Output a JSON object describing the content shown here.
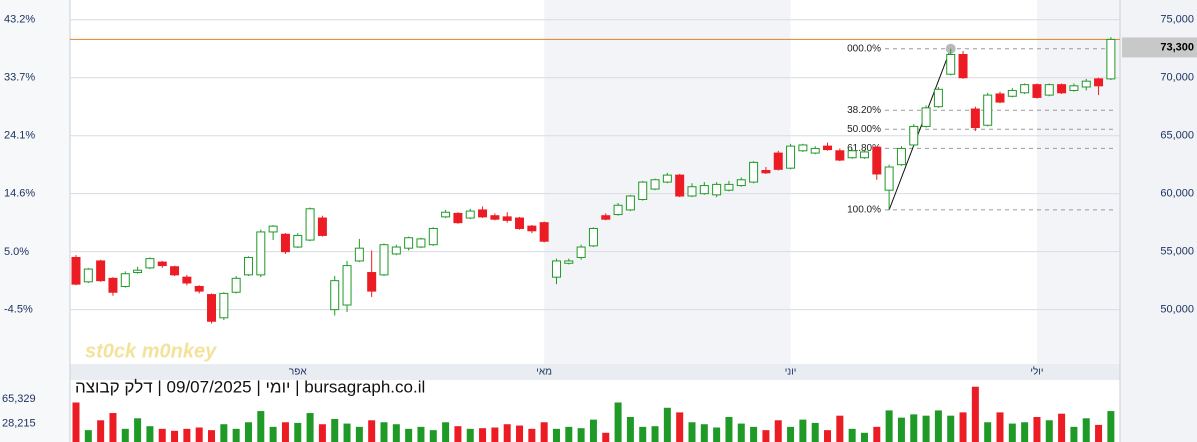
{
  "chart_data": [
    {
      "type": "candlestick",
      "title": "יומי | 09/07/2025 | דלק קבוצה | bursagraph.co.il",
      "watermark": "st0ck m0nkey",
      "categories": [
        null,
        null,
        null,
        null,
        null,
        null,
        null,
        null,
        null,
        null,
        null,
        null,
        null,
        null,
        null,
        null,
        null,
        null,
        "אפר",
        null,
        null,
        null,
        null,
        null,
        null,
        null,
        null,
        null,
        null,
        null,
        null,
        null,
        null,
        null,
        null,
        null,
        null,
        null,
        "מאי",
        null,
        null,
        null,
        null,
        null,
        null,
        null,
        null,
        null,
        null,
        null,
        null,
        null,
        null,
        null,
        null,
        null,
        null,
        null,
        "יוני",
        null,
        null,
        null,
        null,
        null,
        null,
        null,
        null,
        null,
        null,
        null,
        null,
        null,
        null,
        null,
        null,
        null,
        null,
        null,
        "יולי",
        null,
        null,
        null,
        null,
        null,
        null
      ],
      "open": [
        54500,
        52400,
        54200,
        52700,
        52000,
        53200,
        53600,
        54100,
        53700,
        52800,
        52000,
        51300,
        49300,
        51500,
        53000,
        53000,
        56700,
        56500,
        55400,
        56000,
        57900,
        50000,
        50400,
        54200,
        53200,
        53000,
        54800,
        55300,
        55400,
        55600,
        58000,
        58300,
        57900,
        58600,
        58100,
        58000,
        57900,
        57200,
        57500,
        52800,
        54000,
        54500,
        55500,
        58100,
        58200,
        58600,
        59500,
        60400,
        61000,
        61600,
        59800,
        60000,
        59900,
        60300,
        60700,
        61000,
        62000,
        63500,
        62200,
        63700,
        63500,
        64100,
        63700,
        63100,
        63100,
        64000,
        60300,
        62500,
        64200,
        65800,
        67500,
        70300,
        72000,
        67300,
        65900,
        68600,
        68400,
        68700,
        69400,
        68500,
        69400,
        68900,
        69200,
        69900,
        69900
      ],
      "high": [
        54700,
        53600,
        54300,
        52800,
        53300,
        53700,
        54500,
        54200,
        53800,
        53000,
        52100,
        51400,
        51500,
        52900,
        54600,
        56900,
        57300,
        56600,
        56600,
        58800,
        58100,
        52900,
        54200,
        56100,
        55100,
        55700,
        55600,
        56300,
        56200,
        57100,
        58600,
        58400,
        58700,
        58900,
        58300,
        58400,
        58000,
        57300,
        57600,
        54400,
        54400,
        55600,
        57100,
        58300,
        59200,
        59900,
        61100,
        61300,
        61800,
        61700,
        60900,
        61000,
        61000,
        61100,
        61400,
        62800,
        62300,
        63700,
        64300,
        64300,
        64100,
        64400,
        63900,
        63900,
        63800,
        64100,
        62500,
        64100,
        66000,
        67600,
        69200,
        72500,
        72300,
        67500,
        68700,
        68800,
        69100,
        69500,
        69500,
        69500,
        69500,
        69500,
        69900,
        70000,
        73500
      ],
      "low": [
        52100,
        52300,
        52400,
        51200,
        51900,
        53100,
        53500,
        53600,
        52900,
        52100,
        51400,
        48800,
        49100,
        51400,
        52900,
        52800,
        56000,
        54800,
        55300,
        55900,
        56300,
        49500,
        49800,
        54100,
        51100,
        52900,
        54700,
        55100,
        55300,
        55500,
        57900,
        57400,
        57800,
        57900,
        57700,
        57500,
        56900,
        56600,
        55800,
        52200,
        53900,
        54300,
        55400,
        57700,
        58100,
        58500,
        59400,
        60300,
        60900,
        59700,
        59700,
        59900,
        59700,
        60200,
        60600,
        60900,
        61700,
        62000,
        62100,
        63600,
        63400,
        63700,
        62800,
        63000,
        63000,
        61200,
        58600,
        62400,
        64100,
        65700,
        67400,
        70200,
        69900,
        65400,
        65800,
        67800,
        68300,
        68600,
        68200,
        68400,
        68600,
        68800,
        68900,
        68500,
        69800
      ],
      "close": [
        52200,
        53500,
        52500,
        51500,
        53100,
        53400,
        54400,
        53800,
        53000,
        52300,
        51600,
        49000,
        51400,
        52700,
        54500,
        56700,
        57200,
        55000,
        56400,
        58700,
        56400,
        52500,
        53800,
        55300,
        51600,
        55600,
        55400,
        56200,
        56100,
        57000,
        58400,
        57500,
        58500,
        58000,
        57800,
        57700,
        57000,
        56800,
        55900,
        54200,
        54200,
        55400,
        57000,
        57800,
        59000,
        59800,
        61000,
        61200,
        61600,
        59800,
        60600,
        60700,
        60800,
        60800,
        61200,
        62700,
        61800,
        62100,
        64100,
        64200,
        63900,
        63800,
        62900,
        63700,
        63600,
        61700,
        62300,
        63900,
        65800,
        67400,
        69000,
        72000,
        70000,
        65700,
        68500,
        67900,
        68900,
        69400,
        68300,
        69400,
        68700,
        69300,
        69700,
        69300,
        73300
      ],
      "up_color": "#1f9a27",
      "down_color": "#ec1c24",
      "ylim": [
        45400,
        76700
      ],
      "yticks": [
        {
          "value": 75000,
          "label": "75,000"
        },
        {
          "value": 70000,
          "label": "70,000"
        },
        {
          "value": 65000,
          "label": "65,000"
        },
        {
          "value": 60000,
          "label": "60,000"
        },
        {
          "value": 55000,
          "label": "55,000"
        },
        {
          "value": 50000,
          "label": "50,000"
        }
      ],
      "y2lim": [
        -13.27,
        46.43
      ],
      "y2ticks": [
        {
          "value": 43.2,
          "label": "43.2%"
        },
        {
          "value": 33.7,
          "label": "33.7%"
        },
        {
          "value": 24.1,
          "label": "24.1%"
        },
        {
          "value": 14.6,
          "label": "14.6%"
        },
        {
          "value": 5.0,
          "label": "5.0%"
        },
        {
          "value": -4.5,
          "label": "-4.5%"
        }
      ],
      "grid": true,
      "current_price": 73300,
      "current_price_label": "73,300",
      "current_price_color": "#d9822b",
      "fibonacci": {
        "color": "#9a9a9a",
        "levels": [
          {
            "value": 72500,
            "label": "000.0%"
          },
          {
            "value": 67190,
            "label": "38.20%"
          },
          {
            "value": 65550,
            "label": "50.00%"
          },
          {
            "value": 63910,
            "label": "61.80%"
          },
          {
            "value": 58600,
            "label": "100.0%"
          }
        ]
      }
    },
    {
      "type": "bar",
      "values": [
        60000,
        18000,
        33000,
        44000,
        20000,
        36000,
        24000,
        20000,
        17000,
        20000,
        22000,
        18000,
        27000,
        20000,
        30000,
        47000,
        23000,
        30000,
        29000,
        44000,
        27000,
        35000,
        28000,
        23000,
        33000,
        30000,
        27000,
        20000,
        23000,
        18000,
        30000,
        24000,
        20000,
        21000,
        22000,
        27000,
        25000,
        20000,
        30000,
        20000,
        23000,
        21000,
        34000,
        14000,
        60000,
        38000,
        23000,
        24000,
        52000,
        45000,
        30000,
        27000,
        22000,
        38000,
        28000,
        23000,
        18000,
        33000,
        23000,
        34000,
        29000,
        18000,
        40000,
        20000,
        14000,
        23000,
        48000,
        37000,
        42000,
        40000,
        48000,
        40000,
        45000,
        84000,
        30000,
        45000,
        28000,
        30000,
        38000,
        33000,
        43000,
        23000,
        36000,
        26000,
        47000
      ],
      "ylim": [
        0,
        86600
      ],
      "yticks": [
        {
          "value": 65329,
          "label": "65,329"
        },
        {
          "value": 28215,
          "label": "28,215"
        }
      ]
    }
  ]
}
